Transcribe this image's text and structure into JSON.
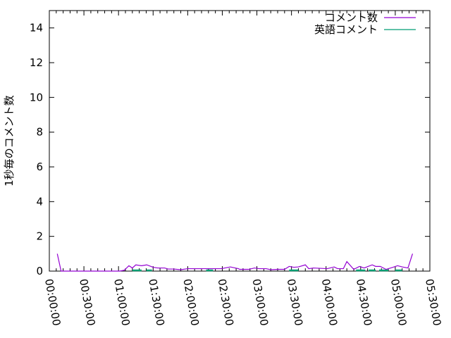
{
  "chart_data": {
    "type": "line",
    "title": "",
    "xlabel": "",
    "ylabel": "1秒毎のコメント数",
    "xlim": [
      "00:00:00",
      "05:30:00"
    ],
    "ylim": [
      0,
      15
    ],
    "grid": false,
    "legend_placement": "top-right",
    "x_ticks": [
      "00:00:00",
      "00:30:00",
      "01:00:00",
      "01:30:00",
      "02:00:00",
      "02:30:00",
      "03:00:00",
      "03:30:00",
      "04:00:00",
      "04:30:00",
      "05:00:00",
      "05:30:00"
    ],
    "y_ticks": [
      "0",
      "2",
      "4",
      "6",
      "8",
      "10",
      "12",
      "14"
    ],
    "series": [
      {
        "name": "コメント数",
        "color": "#9400d3",
        "points": [
          [
            "00:06:54",
            1
          ],
          [
            "00:10:12",
            0
          ],
          [
            "00:31:00",
            0
          ],
          [
            "00:34:00",
            0
          ],
          [
            "01:01:00",
            0
          ],
          [
            "01:05:00",
            0.05
          ],
          [
            "01:09:00",
            0.31
          ],
          [
            "01:12:00",
            0.18
          ],
          [
            "01:15:00",
            0.36
          ],
          [
            "01:20:00",
            0.31
          ],
          [
            "01:24:30",
            0.36
          ],
          [
            "01:30:00",
            0.22
          ],
          [
            "01:34:00",
            0.18
          ],
          [
            "01:40:00",
            0.18
          ],
          [
            "01:43:00",
            0.12
          ],
          [
            "01:48:00",
            0.12
          ],
          [
            "01:54:00",
            0.08
          ],
          [
            "02:00:00",
            0.14
          ],
          [
            "02:07:00",
            0.14
          ],
          [
            "02:17:00",
            0.14
          ],
          [
            "02:21:00",
            0.14
          ],
          [
            "02:29:00",
            0.14
          ],
          [
            "02:37:00",
            0.24
          ],
          [
            "02:44:00",
            0.14
          ],
          [
            "02:45:00",
            0.1
          ],
          [
            "02:53:00",
            0.1
          ],
          [
            "02:58:00",
            0.18
          ],
          [
            "03:02:00",
            0.14
          ],
          [
            "03:08:00",
            0.14
          ],
          [
            "03:12:00",
            0.08
          ],
          [
            "03:18:00",
            0.1
          ],
          [
            "03:24:00",
            0.1
          ],
          [
            "03:28:00",
            0.27
          ],
          [
            "03:32:00",
            0.22
          ],
          [
            "03:36:00",
            0.24
          ],
          [
            "03:42:00",
            0.36
          ],
          [
            "03:45:00",
            0.14
          ],
          [
            "03:49:00",
            0.18
          ],
          [
            "04:01:00",
            0.14
          ],
          [
            "04:07:00",
            0.24
          ],
          [
            "04:10:00",
            0.14
          ],
          [
            "04:15:00",
            0.14
          ],
          [
            "04:18:00",
            0.55
          ],
          [
            "04:24:00",
            0.1
          ],
          [
            "04:29:00",
            0.27
          ],
          [
            "04:33:00",
            0.18
          ],
          [
            "04:40:00",
            0.36
          ],
          [
            "04:43:00",
            0.27
          ],
          [
            "04:47:00",
            0.27
          ],
          [
            "04:52:00",
            0.1
          ],
          [
            "04:58:00",
            0.22
          ],
          [
            "05:02:00",
            0.31
          ],
          [
            "05:06:00",
            0.24
          ],
          [
            "05:11:00",
            0.18
          ],
          [
            "05:15:00",
            1
          ]
        ]
      },
      {
        "name": "英語コメント",
        "color": "#009e73",
        "segments": [
          [
            [
              "01:12:00",
              0
            ],
            [
              "01:20:00",
              0
            ]
          ],
          [
            [
              "01:24:00",
              0
            ],
            [
              "01:29:00",
              0
            ]
          ],
          [
            [
              "02:16:00",
              0
            ],
            [
              "02:22:00",
              0
            ]
          ],
          [
            [
              "03:28:00",
              0
            ],
            [
              "03:36:00",
              0
            ]
          ],
          [
            [
              "04:26:00",
              0
            ],
            [
              "04:34:00",
              0
            ]
          ],
          [
            [
              "04:37:00",
              0
            ],
            [
              "04:43:00",
              0
            ]
          ],
          [
            [
              "04:46:00",
              0
            ],
            [
              "04:54:00",
              0
            ]
          ],
          [
            [
              "05:00:00",
              0
            ],
            [
              "05:06:00",
              0
            ]
          ]
        ]
      }
    ]
  }
}
